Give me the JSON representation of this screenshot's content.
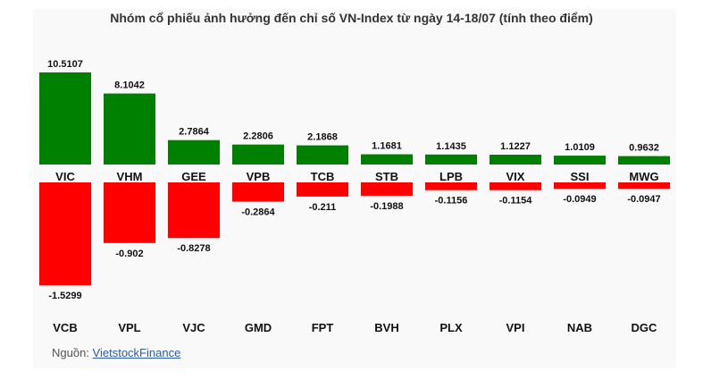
{
  "chart_data": {
    "type": "bar",
    "title": "Nhóm cổ phiếu ảnh hưởng đến chỉ số VN-Index từ ngày 14-18/07 (tính theo điểm)",
    "positive": {
      "categories": [
        "VIC",
        "VHM",
        "GEE",
        "VPB",
        "TCB",
        "STB",
        "LPB",
        "VIX",
        "SSI",
        "MWG"
      ],
      "values": [
        10.5107,
        8.1042,
        2.7864,
        2.2806,
        2.1868,
        1.1681,
        1.1435,
        1.1227,
        1.0109,
        0.9632
      ],
      "labels": [
        "10.5107",
        "8.1042",
        "2.7864",
        "2.2806",
        "2.1868",
        "1.1681",
        "1.1435",
        "1.1227",
        "1.0109",
        "0.9632"
      ],
      "color": "#008000"
    },
    "negative": {
      "categories": [
        "VCB",
        "VPL",
        "VJC",
        "GMD",
        "FPT",
        "BVH",
        "PLX",
        "VPI",
        "NAB",
        "DGC"
      ],
      "values": [
        -1.5299,
        -0.902,
        -0.8278,
        -0.2864,
        -0.211,
        -0.1988,
        -0.1156,
        -0.1154,
        -0.0949,
        -0.0947
      ],
      "labels": [
        "-1.5299",
        "-0.902",
        "-0.8278",
        "-0.2864",
        "-0.211",
        "-0.1988",
        "-0.1156",
        "-0.1154",
        "-0.0949",
        "-0.0947"
      ],
      "color": "#ff0000"
    },
    "grid": false,
    "legend": "none"
  },
  "source": {
    "prefix": "Nguồn:",
    "link_text": "VietstockFinance"
  }
}
